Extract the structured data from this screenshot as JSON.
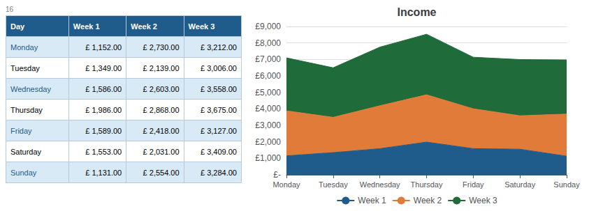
{
  "chart_data": [
    {
      "type": "table",
      "xlabel": "Day",
      "color": "#1F5C8B",
      "annotations": [
        "16"
      ],
      "categories": [
        "Monday",
        "Tuesday",
        "Wednesday",
        "Thursday",
        "Friday",
        "Saturday",
        "Sunday"
      ],
      "series": [
        {
          "name": "Week 1",
          "values": [
            1152,
            1349,
            1586,
            1986,
            1589,
            1553,
            1131
          ],
          "value_labels": [
            "£ 1,152.00",
            "£ 1,349.00",
            "£ 1,586.00",
            "£ 1,986.00",
            "£ 1,589.00",
            "£ 1,553.00",
            "£ 1,131.00"
          ]
        },
        {
          "name": "Week 2",
          "values": [
            2730,
            2139,
            2603,
            2868,
            2418,
            2031,
            2554
          ],
          "value_labels": [
            "£ 2,730.00",
            "£ 2,139.00",
            "£ 2,603.00",
            "£ 2,868.00",
            "£ 2,418.00",
            "£ 2,031.00",
            "£ 2,554.00"
          ]
        },
        {
          "name": "Week 3",
          "values": [
            3212,
            3006,
            3558,
            3675,
            3127,
            3409,
            3284
          ],
          "value_labels": [
            "£ 3,212.00",
            "£ 3,006.00",
            "£ 3,558.00",
            "£ 3,675.00",
            "£ 3,127.00",
            "£ 3,409.00",
            "£ 3,284.00"
          ]
        }
      ]
    },
    {
      "type": "area",
      "title": "Income",
      "stacked": true,
      "grid": true,
      "legend": "bottom",
      "categories": [
        "Monday",
        "Tuesday",
        "Wednesday",
        "Thursday",
        "Friday",
        "Saturday",
        "Sunday"
      ],
      "series": [
        {
          "name": "Week 1",
          "color": "#1F5C8B",
          "values": [
            1152,
            1349,
            1586,
            1986,
            1589,
            1553,
            1131
          ]
        },
        {
          "name": "Week 2",
          "color": "#E07B39",
          "values": [
            2730,
            2139,
            2603,
            2868,
            2418,
            2031,
            2554
          ]
        },
        {
          "name": "Week 3",
          "color": "#1F6B3A",
          "values": [
            3212,
            3006,
            3558,
            3675,
            3127,
            3409,
            3284
          ]
        }
      ],
      "ylim": [
        0,
        9000
      ],
      "yticks": [
        {
          "value": 0,
          "label": "£-"
        },
        {
          "value": 1000,
          "label": "£1,000"
        },
        {
          "value": 2000,
          "label": "£2,000"
        },
        {
          "value": 3000,
          "label": "£3,000"
        },
        {
          "value": 4000,
          "label": "£4,000"
        },
        {
          "value": 5000,
          "label": "£5,000"
        },
        {
          "value": 6000,
          "label": "£6,000"
        },
        {
          "value": 7000,
          "label": "£7,000"
        },
        {
          "value": 8000,
          "label": "£8,000"
        },
        {
          "value": 9000,
          "label": "£9,000"
        }
      ]
    }
  ]
}
